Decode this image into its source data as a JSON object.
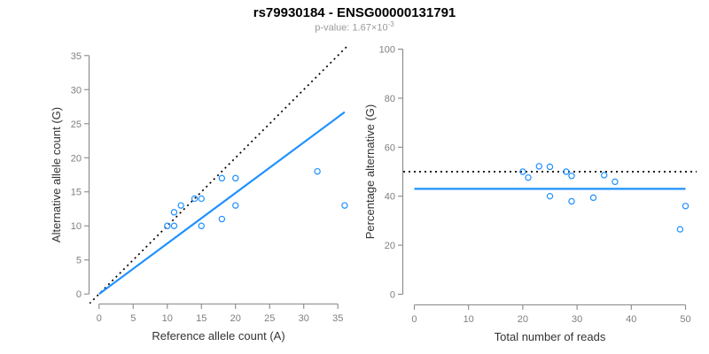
{
  "header": {
    "title": "rs79930184 - ENSG00000131791",
    "pvalue_label": "p-value: 1.67×10",
    "pvalue_exponent": "-3"
  },
  "colors": {
    "accent_blue": "#1E90FF",
    "line_black": "#000000",
    "tick_gray": "#7f7f7f",
    "axis_gray": "#888888",
    "axis_title_color": "#333333",
    "subtitle_gray": "#9a9a9a"
  },
  "chart_data": [
    {
      "type": "scatter",
      "name": "allele-counts-panel",
      "xlabel": "Reference allele count (A)",
      "ylabel": "Alternative allele count (G)",
      "xlim": [
        0,
        35
      ],
      "ylim": [
        0,
        35
      ],
      "xticks": [
        0,
        5,
        10,
        15,
        20,
        25,
        30,
        35
      ],
      "yticks": [
        0,
        5,
        10,
        15,
        20,
        25,
        30,
        35
      ],
      "grid": false,
      "points": [
        [
          10,
          10
        ],
        [
          11,
          10
        ],
        [
          11,
          12
        ],
        [
          12,
          13
        ],
        [
          14,
          14
        ],
        [
          15,
          10
        ],
        [
          15,
          14
        ],
        [
          18,
          11
        ],
        [
          18,
          17
        ],
        [
          20,
          13
        ],
        [
          20,
          17
        ],
        [
          32,
          18
        ],
        [
          36,
          13
        ]
      ],
      "lines": [
        {
          "name": "identity-line",
          "kind": "abline",
          "slope": 1,
          "intercept": 0,
          "style": "dotted",
          "color": "#000000"
        },
        {
          "name": "regression-line",
          "kind": "segment",
          "x1": 0,
          "y1": 0,
          "x2": 36,
          "y2": 26.7,
          "style": "solid",
          "color": "#1E90FF"
        }
      ]
    },
    {
      "type": "scatter",
      "name": "percentage-panel",
      "xlabel": "Total number of reads",
      "ylabel": "Percentage alternative (G)",
      "xlim": [
        0,
        50
      ],
      "ylim": [
        0,
        100
      ],
      "xticks": [
        0,
        10,
        20,
        30,
        40,
        50
      ],
      "yticks": [
        0,
        20,
        40,
        60,
        80,
        100
      ],
      "grid": false,
      "points": [
        [
          20,
          50
        ],
        [
          21,
          47.6
        ],
        [
          23,
          52.2
        ],
        [
          25,
          40
        ],
        [
          25,
          52
        ],
        [
          28,
          50
        ],
        [
          29,
          37.9
        ],
        [
          29,
          48.3
        ],
        [
          33,
          39.4
        ],
        [
          35,
          48.6
        ],
        [
          37,
          45.9
        ],
        [
          49,
          26.5
        ],
        [
          50,
          36
        ]
      ],
      "lines": [
        {
          "name": "fifty-percent-line",
          "kind": "hline",
          "y": 50,
          "style": "dotted",
          "color": "#000000"
        },
        {
          "name": "mean-percentage-line",
          "kind": "segment",
          "x1": 0,
          "y1": 43,
          "x2": 50,
          "y2": 43,
          "style": "solid",
          "color": "#1E90FF"
        }
      ]
    }
  ]
}
